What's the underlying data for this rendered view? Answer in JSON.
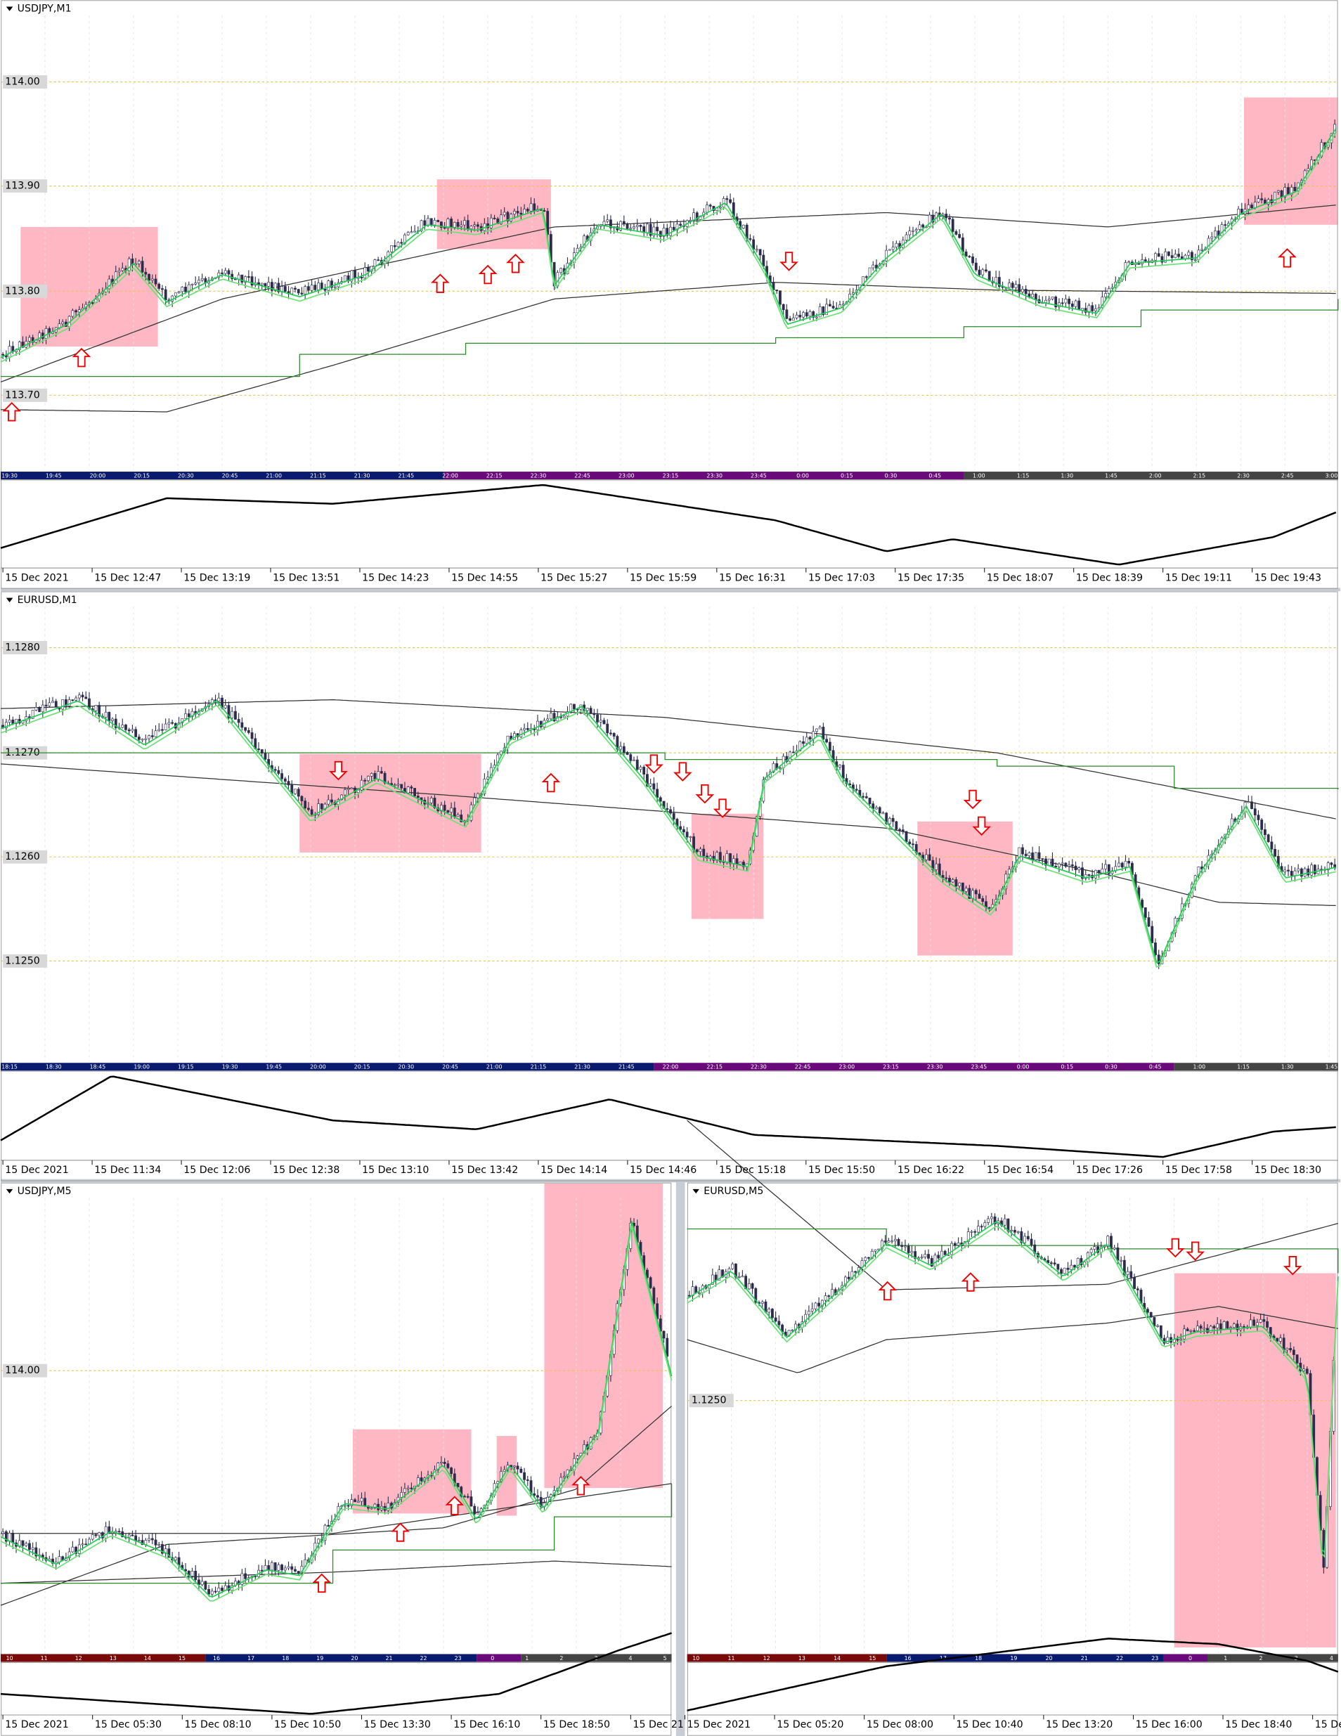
{
  "panels": [
    {
      "title": "USDJPY,M1",
      "price_labels": [
        "114.00",
        "113.90",
        "113.80",
        "113.70"
      ],
      "session_labels": [
        "19:30",
        "19:45",
        "20:00",
        "20:15",
        "20:30",
        "20:45",
        "21:00",
        "21:15",
        "21:30",
        "21:45",
        "22:00",
        "22:15",
        "22:30",
        "22:45",
        "23:00",
        "23:15",
        "23:30",
        "23:45",
        "0:00",
        "0:15",
        "0:30",
        "0:45",
        "1:00",
        "1:15",
        "1:30",
        "1:45",
        "2:00",
        "2:15",
        "2:30",
        "2:45",
        "3:00"
      ],
      "time_labels": [
        "15 Dec 2021",
        "15 Dec 12:47",
        "15 Dec 13:19",
        "15 Dec 13:51",
        "15 Dec 14:23",
        "15 Dec 14:55",
        "15 Dec 15:27",
        "15 Dec 15:59",
        "15 Dec 16:31",
        "15 Dec 17:03",
        "15 Dec 17:35",
        "15 Dec 18:07",
        "15 Dec 18:39",
        "15 Dec 19:11",
        "15 Dec 19:43"
      ]
    },
    {
      "title": "EURUSD,M1",
      "price_labels": [
        "1.1280",
        "1.1270",
        "1.1260",
        "1.1250"
      ],
      "session_labels": [
        "18:15",
        "18:30",
        "18:45",
        "19:00",
        "19:15",
        "19:30",
        "19:45",
        "20:00",
        "20:15",
        "20:30",
        "20:45",
        "21:00",
        "21:15",
        "21:30",
        "21:45",
        "22:00",
        "22:15",
        "22:30",
        "22:45",
        "23:00",
        "23:15",
        "23:30",
        "23:45",
        "0:00",
        "0:15",
        "0:30",
        "0:45",
        "1:00",
        "1:15",
        "1:30",
        "1:45"
      ],
      "time_labels": [
        "15 Dec 2021",
        "15 Dec 11:34",
        "15 Dec 12:06",
        "15 Dec 12:38",
        "15 Dec 13:10",
        "15 Dec 13:42",
        "15 Dec 14:14",
        "15 Dec 14:46",
        "15 Dec 15:18",
        "15 Dec 15:50",
        "15 Dec 16:22",
        "15 Dec 16:54",
        "15 Dec 17:26",
        "15 Dec 17:58",
        "15 Dec 18:30"
      ]
    },
    {
      "title": "USDJPY,M5",
      "price_labels": [
        "114.00"
      ],
      "session_labels": [
        "10",
        "11",
        "12",
        "13",
        "14",
        "15",
        "16",
        "17",
        "18",
        "19",
        "20",
        "21",
        "22",
        "23",
        "0",
        "1",
        "2",
        "3",
        "4",
        "5"
      ],
      "time_labels": [
        "15 Dec 2021",
        "15 Dec 05:30",
        "15 Dec 08:10",
        "15 Dec 10:50",
        "15 Dec 13:30",
        "15 Dec 16:10",
        "15 Dec 18:50",
        "15 Dec 21"
      ]
    },
    {
      "title": "EURUSD,M5",
      "price_labels": [
        "1.1250"
      ],
      "session_labels": [
        "10",
        "11",
        "12",
        "13",
        "14",
        "15",
        "16",
        "17",
        "18",
        "19",
        "20",
        "21",
        "22",
        "23",
        "0",
        "1",
        "2",
        "3",
        "4"
      ],
      "time_labels": [
        "15 Dec 2021",
        "15 Dec 05:20",
        "15 Dec 08:00",
        "15 Dec 10:40",
        "15 Dec 13:20",
        "15 Dec 16:00",
        "15 Dec 18:40",
        "15 De"
      ]
    }
  ]
}
